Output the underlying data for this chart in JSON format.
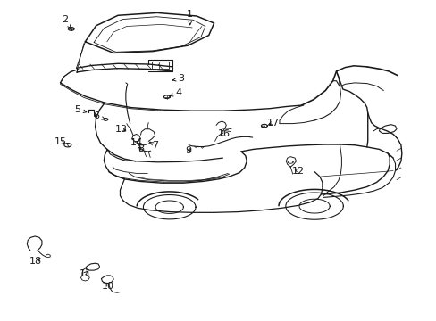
{
  "bg_color": "#ffffff",
  "line_color": "#1a1a1a",
  "callout_positions": {
    "1": [
      0.435,
      0.955,
      0.435,
      0.92
    ],
    "2": [
      0.148,
      0.938,
      0.163,
      0.91
    ],
    "3": [
      0.415,
      0.755,
      0.388,
      0.748
    ],
    "4": [
      0.408,
      0.71,
      0.382,
      0.698
    ],
    "5": [
      0.178,
      0.658,
      0.2,
      0.65
    ],
    "6": [
      0.22,
      0.638,
      0.242,
      0.628
    ],
    "7": [
      0.355,
      0.548,
      0.342,
      0.558
    ],
    "8": [
      0.322,
      0.535,
      0.315,
      0.548
    ],
    "9": [
      0.432,
      0.53,
      0.435,
      0.548
    ],
    "10": [
      0.248,
      0.108,
      0.24,
      0.128
    ],
    "11": [
      0.195,
      0.148,
      0.205,
      0.162
    ],
    "12": [
      0.682,
      0.468,
      0.668,
      0.478
    ],
    "13": [
      0.278,
      0.598,
      0.295,
      0.588
    ],
    "14": [
      0.312,
      0.555,
      0.322,
      0.568
    ],
    "15": [
      0.138,
      0.558,
      0.155,
      0.548
    ],
    "16": [
      0.512,
      0.582,
      0.498,
      0.575
    ],
    "17": [
      0.625,
      0.618,
      0.608,
      0.608
    ],
    "18": [
      0.082,
      0.185,
      0.098,
      0.202
    ]
  }
}
